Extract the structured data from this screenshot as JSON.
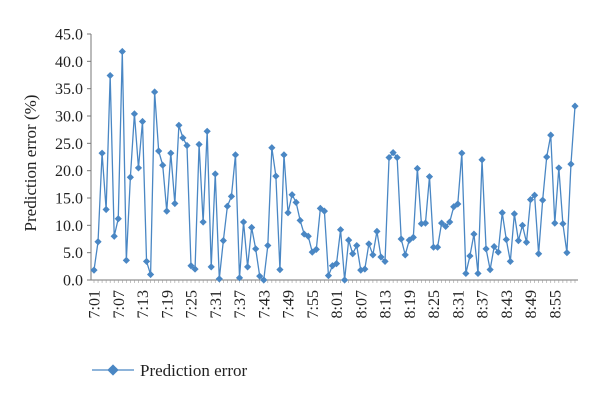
{
  "chart_data": {
    "type": "line",
    "title": "",
    "xlabel": "",
    "ylabel": "Prediction error (%)",
    "ylim": [
      0,
      45
    ],
    "yticks": [
      0.0,
      5.0,
      10.0,
      15.0,
      20.0,
      25.0,
      30.0,
      35.0,
      40.0,
      45.0
    ],
    "ytick_labels": [
      "0.0",
      "5.0",
      "10.0",
      "15.0",
      "20.0",
      "25.0",
      "30.0",
      "35.0",
      "40.0",
      "45.0"
    ],
    "x_start": "7:01",
    "x_step_minutes": 1,
    "xtick_labels": [
      "7:01",
      "7:07",
      "7:13",
      "7:19",
      "7:25",
      "7:31",
      "7:37",
      "7:43",
      "7:49",
      "7:55",
      "8:01",
      "8:07",
      "8:13",
      "8:19",
      "8:25",
      "8:31",
      "8:37",
      "8:43",
      "8:49",
      "8:55"
    ],
    "grid": false,
    "legend_position": "bottom-left",
    "series": [
      {
        "name": "Prediction error",
        "color": "#4a87c4",
        "marker": "diamond",
        "values": [
          1.8,
          7.0,
          23.2,
          12.9,
          37.4,
          8.0,
          11.2,
          41.8,
          3.6,
          18.8,
          30.4,
          20.5,
          29.0,
          3.4,
          1.0,
          34.4,
          23.6,
          21.0,
          12.6,
          23.2,
          14.0,
          28.3,
          26.0,
          24.6,
          2.6,
          2.0,
          24.8,
          10.6,
          27.2,
          2.4,
          19.4,
          0.2,
          7.2,
          13.5,
          15.3,
          22.9,
          0.4,
          10.6,
          2.4,
          9.6,
          5.7,
          0.7,
          0.0,
          6.3,
          24.2,
          19.0,
          1.9,
          22.9,
          12.3,
          15.6,
          14.2,
          10.9,
          8.4,
          8.0,
          5.1,
          5.6,
          13.1,
          12.6,
          0.8,
          2.6,
          3.0,
          9.2,
          0.0,
          7.3,
          4.8,
          6.3,
          1.8,
          2.0,
          6.6,
          4.6,
          8.9,
          4.2,
          3.4,
          22.4,
          23.3,
          22.4,
          7.5,
          4.6,
          7.3,
          7.8,
          20.4,
          10.3,
          10.4,
          18.9,
          6.0,
          6.0,
          10.4,
          9.8,
          10.6,
          13.4,
          13.9,
          23.2,
          1.2,
          4.4,
          8.4,
          1.2,
          22.0,
          5.7,
          1.9,
          6.1,
          5.1,
          12.3,
          7.4,
          3.4,
          12.1,
          7.2,
          10.0,
          6.9,
          14.7,
          15.5,
          4.8,
          14.6,
          22.5,
          26.5,
          10.4,
          20.5,
          10.3,
          5.0,
          21.2,
          31.8
        ]
      }
    ]
  }
}
